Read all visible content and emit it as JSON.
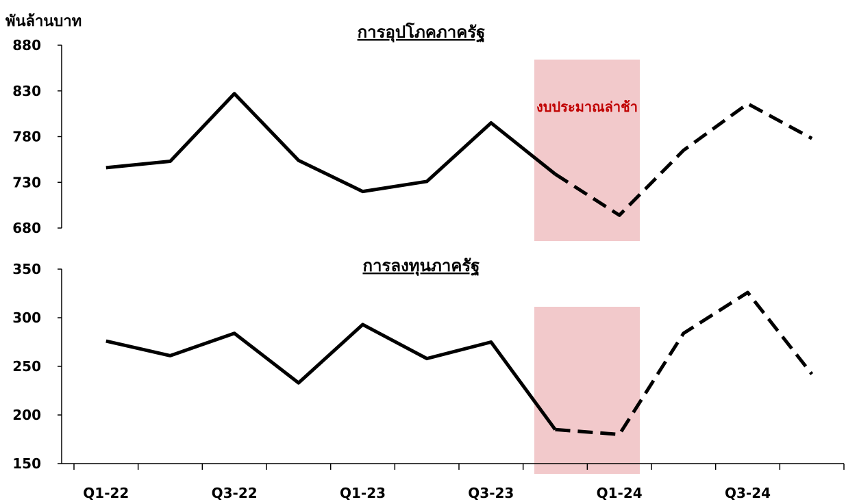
{
  "unit_label": "พันล้านบาท",
  "shade_label": "งบประมาณล่าช้า",
  "colors": {
    "line": "#000000",
    "shade": "#F2C9CB",
    "shade_label": "#C00000"
  },
  "chart_data": [
    {
      "type": "line",
      "title": "การอุปโภคภาครัฐ",
      "ylabel": "พันล้านบาท",
      "ylim": [
        680,
        880
      ],
      "yticks": [
        680,
        730,
        780,
        830,
        880
      ],
      "categories": [
        "Q1-22",
        "Q2-22",
        "Q3-22",
        "Q4-22",
        "Q1-23",
        "Q2-23",
        "Q3-23",
        "Q4-23",
        "Q1-24",
        "Q2-24",
        "Q3-24",
        "Q4-24"
      ],
      "series": [
        {
          "style": "solid",
          "values": [
            746,
            753,
            827,
            754,
            720,
            731,
            795,
            739,
            null,
            null,
            null,
            null
          ]
        },
        {
          "style": "dashed",
          "values": [
            null,
            null,
            null,
            null,
            null,
            null,
            null,
            739,
            694,
            765,
            816,
            778
          ]
        }
      ],
      "shaded_region": {
        "from": "Q4-23",
        "to": "Q1-24",
        "label": "งบประมาณล่าช้า"
      }
    },
    {
      "type": "line",
      "title": "การลงทุนภาครัฐ",
      "ylim": [
        150,
        350
      ],
      "yticks": [
        150,
        200,
        250,
        300,
        350
      ],
      "categories": [
        "Q1-22",
        "Q2-22",
        "Q3-22",
        "Q4-22",
        "Q1-23",
        "Q2-23",
        "Q3-23",
        "Q4-23",
        "Q1-24",
        "Q2-24",
        "Q3-24",
        "Q4-24"
      ],
      "xtick_labels": [
        "Q1-22",
        "",
        "Q3-22",
        "",
        "Q1-23",
        "",
        "Q3-23",
        "",
        "Q1-24",
        "",
        "Q3-24",
        ""
      ],
      "series": [
        {
          "style": "solid",
          "values": [
            276,
            261,
            284,
            233,
            293,
            258,
            275,
            185,
            null,
            null,
            null,
            null
          ]
        },
        {
          "style": "dashed",
          "values": [
            null,
            null,
            null,
            null,
            null,
            null,
            null,
            185,
            180,
            284,
            326,
            242
          ]
        }
      ],
      "shaded_region": {
        "from": "Q4-23",
        "to": "Q1-24"
      }
    }
  ]
}
